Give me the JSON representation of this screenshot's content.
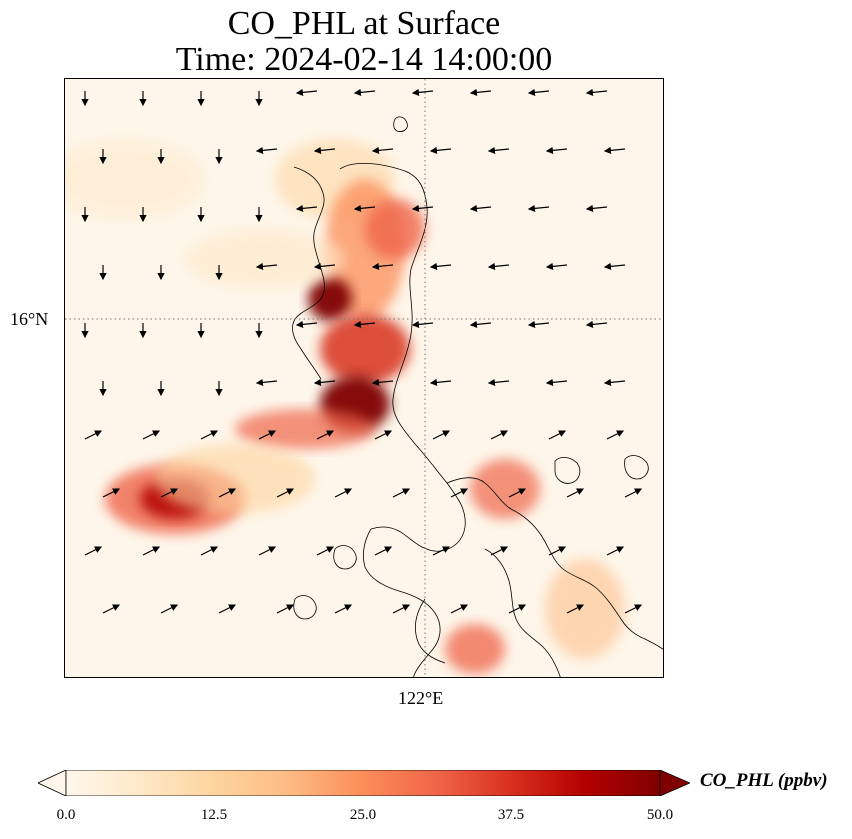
{
  "title_line1": "CO_PHL at Surface",
  "title_line2": "Time: 2024-02-14 14:00:00",
  "map": {
    "lat_gridline_label": "16°N",
    "lon_gridline_label": "122°E",
    "background_color": "#fef6ea",
    "coastline_color": "#000000",
    "gridline_style": "dotted",
    "wind_vectors": "black arrows"
  },
  "colorbar": {
    "label": "CO_PHL (ppbv)",
    "ticks": [
      "0.0",
      "12.5",
      "25.0",
      "37.5",
      "50.0"
    ],
    "min": 0.0,
    "max": 50.0,
    "extend": "both",
    "colormap": "OrRd",
    "colors": [
      "#fff7ec",
      "#fee8c8",
      "#fdd49e",
      "#fdbb84",
      "#fc8d59",
      "#ef6548",
      "#d7301f",
      "#b30000",
      "#7f0000"
    ]
  }
}
